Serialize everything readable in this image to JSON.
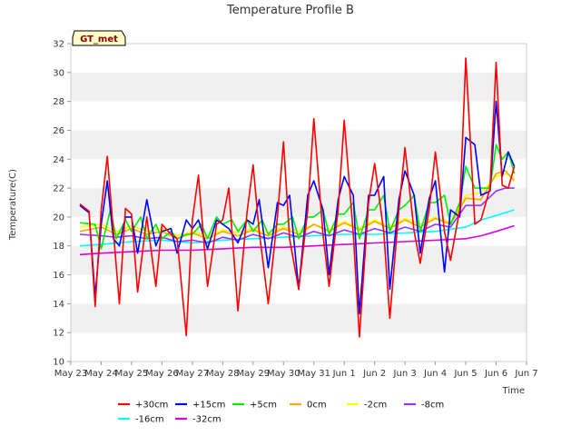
{
  "chart_data": {
    "type": "line",
    "title": "Temperature Profile B",
    "xlabel": "Time",
    "ylabel": "Temperature(C)",
    "badge": "GT_met",
    "x_tick_labels": [
      "May 23",
      "May 24",
      "May 25",
      "May 26",
      "May 27",
      "May 28",
      "May 29",
      "May 30",
      "May 31",
      "Jun 1",
      "Jun 2",
      "Jun 3",
      "Jun 4",
      "Jun 5",
      "Jun 6",
      "Jun 7"
    ],
    "xlim": [
      0,
      15
    ],
    "ylim": [
      10,
      32
    ],
    "y_ticks": [
      10,
      12,
      14,
      16,
      18,
      20,
      22,
      24,
      26,
      28,
      30,
      32
    ],
    "grid": "horizontal bands",
    "legend_position": "bottom",
    "series": [
      {
        "name": "+30cm",
        "color": "#ff0000",
        "x": [
          0.3,
          0.6,
          0.8,
          1.0,
          1.2,
          1.4,
          1.6,
          1.8,
          2.0,
          2.2,
          2.5,
          2.8,
          3.0,
          3.3,
          3.5,
          3.8,
          4.0,
          4.2,
          4.5,
          4.8,
          5.0,
          5.2,
          5.5,
          5.8,
          6.0,
          6.2,
          6.5,
          6.8,
          7.0,
          7.2,
          7.5,
          7.8,
          8.0,
          8.3,
          8.5,
          8.8,
          9.0,
          9.3,
          9.5,
          9.8,
          10.0,
          10.3,
          10.5,
          10.8,
          11.0,
          11.3,
          11.5,
          11.8,
          12.0,
          12.3,
          12.5,
          12.8,
          13.0,
          13.3,
          13.5,
          13.8,
          14.0,
          14.2,
          14.4,
          14.6
        ],
        "y": [
          20.9,
          20.4,
          13.8,
          20.5,
          24.2,
          19.0,
          14.0,
          20.6,
          20.2,
          14.8,
          20.0,
          15.2,
          19.5,
          18.8,
          18.5,
          11.8,
          19.8,
          22.9,
          15.2,
          19.5,
          19.8,
          22.0,
          13.5,
          20.3,
          23.6,
          19.0,
          14.0,
          20.0,
          25.2,
          18.5,
          15.0,
          20.5,
          26.8,
          18.8,
          15.2,
          20.5,
          26.7,
          18.8,
          11.7,
          21.0,
          23.7,
          19.0,
          13.0,
          20.5,
          24.8,
          19.0,
          16.8,
          20.6,
          24.5,
          19.0,
          17.0,
          20.5,
          31.0,
          19.5,
          19.8,
          22.0,
          30.7,
          22.2,
          22.0,
          23.5
        ]
      },
      {
        "name": "+15cm",
        "color": "#0000ff",
        "x": [
          0.3,
          0.6,
          0.8,
          1.0,
          1.2,
          1.4,
          1.6,
          1.8,
          2.0,
          2.2,
          2.5,
          2.8,
          3.0,
          3.3,
          3.5,
          3.8,
          4.0,
          4.2,
          4.5,
          4.8,
          5.0,
          5.2,
          5.5,
          5.8,
          6.0,
          6.2,
          6.5,
          6.8,
          7.0,
          7.2,
          7.5,
          7.8,
          8.0,
          8.3,
          8.5,
          8.8,
          9.0,
          9.3,
          9.5,
          9.8,
          10.0,
          10.3,
          10.5,
          10.8,
          11.0,
          11.3,
          11.5,
          11.8,
          12.0,
          12.3,
          12.5,
          12.8,
          13.0,
          13.3,
          13.5,
          13.8,
          14.0,
          14.2,
          14.4,
          14.6
        ],
        "y": [
          20.8,
          20.3,
          14.5,
          19.5,
          22.5,
          18.5,
          18.0,
          20.0,
          20.0,
          17.5,
          21.2,
          18.0,
          19.0,
          19.2,
          17.5,
          19.8,
          19.2,
          19.8,
          17.8,
          19.8,
          19.5,
          19.2,
          18.2,
          19.8,
          19.5,
          21.2,
          16.5,
          21.0,
          20.8,
          21.5,
          15.0,
          21.5,
          22.5,
          20.5,
          16.0,
          21.2,
          22.8,
          21.5,
          13.3,
          21.5,
          21.5,
          22.8,
          15.0,
          21.2,
          23.2,
          21.5,
          17.5,
          21.3,
          22.5,
          16.2,
          20.5,
          20.0,
          25.5,
          25.0,
          21.5,
          21.8,
          28.0,
          22.8,
          24.5,
          23.5
        ]
      },
      {
        "name": "+5cm",
        "color": "#00ee00",
        "x": [
          0.3,
          0.8,
          1.0,
          1.3,
          1.5,
          1.8,
          2.0,
          2.3,
          2.5,
          2.8,
          3.0,
          3.3,
          3.5,
          3.8,
          4.0,
          4.3,
          4.5,
          4.8,
          5.0,
          5.3,
          5.5,
          5.8,
          6.0,
          6.3,
          6.5,
          6.8,
          7.0,
          7.3,
          7.5,
          7.8,
          8.0,
          8.3,
          8.5,
          8.8,
          9.0,
          9.3,
          9.5,
          9.8,
          10.0,
          10.3,
          10.5,
          10.8,
          11.0,
          11.3,
          11.5,
          11.8,
          12.0,
          12.3,
          12.5,
          12.8,
          13.0,
          13.3,
          13.5,
          13.8,
          14.0,
          14.2,
          14.4,
          14.6
        ],
        "y": [
          19.6,
          19.5,
          17.8,
          20.5,
          18.5,
          19.8,
          19.0,
          20.0,
          18.5,
          19.5,
          18.5,
          19.0,
          18.5,
          18.8,
          18.8,
          19.5,
          18.5,
          20.0,
          19.5,
          19.8,
          19.0,
          19.8,
          19.0,
          19.8,
          18.8,
          19.5,
          19.5,
          20.0,
          18.5,
          20.0,
          20.0,
          20.5,
          18.8,
          20.2,
          20.2,
          21.0,
          18.5,
          20.5,
          20.5,
          21.5,
          19.0,
          20.5,
          20.8,
          21.5,
          19.0,
          21.0,
          21.0,
          21.5,
          19.5,
          21.0,
          23.5,
          22.0,
          22.0,
          22.0,
          25.0,
          24.0,
          24.5,
          23.0
        ]
      },
      {
        "name": "0cm",
        "color": "#ffa500",
        "x": [
          0.3,
          1.0,
          1.5,
          2.0,
          2.5,
          3.0,
          3.5,
          4.0,
          4.5,
          5.0,
          5.5,
          6.0,
          6.5,
          7.0,
          7.5,
          8.0,
          8.5,
          9.0,
          9.5,
          10.0,
          10.5,
          11.0,
          11.5,
          12.0,
          12.5,
          13.0,
          13.5,
          14.0,
          14.3,
          14.6
        ],
        "y": [
          19.0,
          19.3,
          18.8,
          19.2,
          18.8,
          19.0,
          18.5,
          18.9,
          18.5,
          19.0,
          18.7,
          19.1,
          18.7,
          19.2,
          18.8,
          19.5,
          19.0,
          19.6,
          19.1,
          19.7,
          19.2,
          19.8,
          19.3,
          19.9,
          19.5,
          21.3,
          21.2,
          23.0,
          23.2,
          22.5
        ]
      },
      {
        "name": "-2cm",
        "color": "#ffff00",
        "x": [
          0.3,
          1.0,
          1.5,
          2.0,
          2.5,
          3.0,
          3.5,
          4.0,
          4.5,
          5.0,
          5.5,
          6.0,
          6.5,
          7.0,
          7.5,
          8.0,
          8.5,
          9.0,
          9.5,
          10.0,
          10.5,
          11.0,
          11.5,
          12.0,
          12.5,
          13.0,
          13.5,
          14.0,
          14.3,
          14.6
        ],
        "y": [
          19.3,
          19.5,
          19.0,
          19.4,
          19.0,
          19.2,
          18.7,
          19.0,
          18.7,
          19.1,
          18.9,
          19.2,
          18.9,
          19.3,
          19.0,
          19.5,
          19.1,
          19.7,
          19.2,
          19.8,
          19.3,
          19.9,
          19.5,
          20.0,
          19.6,
          21.5,
          21.7,
          22.8,
          23.0,
          22.7
        ]
      },
      {
        "name": "-8cm",
        "color": "#9933ff",
        "x": [
          0.3,
          1.0,
          1.5,
          2.0,
          2.5,
          3.0,
          3.5,
          4.0,
          4.5,
          5.0,
          5.5,
          6.0,
          6.5,
          7.0,
          7.5,
          8.0,
          8.5,
          9.0,
          9.5,
          10.0,
          10.5,
          11.0,
          11.5,
          12.0,
          12.5,
          13.0,
          13.5,
          14.0,
          14.3,
          14.6
        ],
        "y": [
          18.8,
          18.7,
          18.6,
          18.7,
          18.5,
          18.6,
          18.3,
          18.4,
          18.2,
          18.6,
          18.4,
          18.8,
          18.5,
          18.9,
          18.6,
          19.0,
          18.7,
          19.1,
          18.8,
          19.2,
          18.9,
          19.3,
          19.0,
          19.5,
          19.3,
          20.8,
          20.8,
          21.8,
          22.0,
          22.0
        ]
      },
      {
        "name": "-16cm",
        "color": "#00ffff",
        "x": [
          0.3,
          1.0,
          2.0,
          3.0,
          4.0,
          5.0,
          6.0,
          7.0,
          8.0,
          9.0,
          10.0,
          11.0,
          12.0,
          13.0,
          13.5,
          14.0,
          14.6
        ],
        "y": [
          18.0,
          18.1,
          18.3,
          18.4,
          18.2,
          18.4,
          18.5,
          18.6,
          18.7,
          18.8,
          18.8,
          18.9,
          19.0,
          19.3,
          19.8,
          20.1,
          20.5
        ]
      },
      {
        "name": "-32cm",
        "color": "#dd00dd",
        "x": [
          0.3,
          1.0,
          2.0,
          3.0,
          4.0,
          5.0,
          6.0,
          7.0,
          8.0,
          9.0,
          10.0,
          11.0,
          12.0,
          13.0,
          13.5,
          14.0,
          14.6
        ],
        "y": [
          17.4,
          17.5,
          17.6,
          17.7,
          17.7,
          17.8,
          17.9,
          17.9,
          18.0,
          18.1,
          18.2,
          18.3,
          18.4,
          18.5,
          18.7,
          19.0,
          19.4
        ]
      }
    ]
  }
}
